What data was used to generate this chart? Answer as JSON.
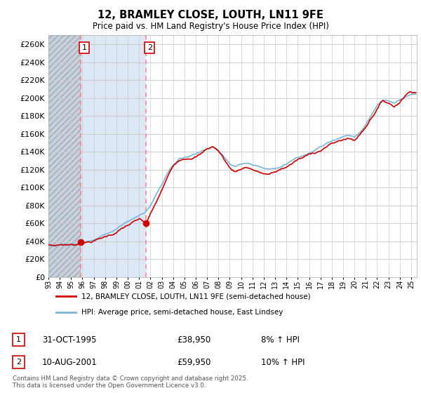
{
  "title": "12, BRAMLEY CLOSE, LOUTH, LN11 9FE",
  "subtitle": "Price paid vs. HM Land Registry's House Price Index (HPI)",
  "legend_line1": "12, BRAMLEY CLOSE, LOUTH, LN11 9FE (semi-detached house)",
  "legend_line2": "HPI: Average price, semi-detached house, East Lindsey",
  "footnote": "Contains HM Land Registry data © Crown copyright and database right 2025.\nThis data is licensed under the Open Government Licence v3.0.",
  "sale1_date": "31-OCT-1995",
  "sale1_price": "£38,950",
  "sale1_hpi": "8% ↑ HPI",
  "sale2_date": "10-AUG-2001",
  "sale2_price": "£59,950",
  "sale2_hpi": "10% ↑ HPI",
  "hpi_color": "#7ab4d8",
  "price_color": "#cc0000",
  "marker_color": "#cc0000",
  "dashed_line_color": "#ff8888",
  "ylim": [
    0,
    270000
  ],
  "yticks": [
    0,
    20000,
    40000,
    60000,
    80000,
    100000,
    120000,
    140000,
    160000,
    180000,
    200000,
    220000,
    240000,
    260000
  ],
  "sale1_x": 1995.83,
  "sale1_y": 38950,
  "sale2_x": 2001.61,
  "sale2_y": 59950,
  "xmin": 1993.0,
  "xmax": 2025.5
}
